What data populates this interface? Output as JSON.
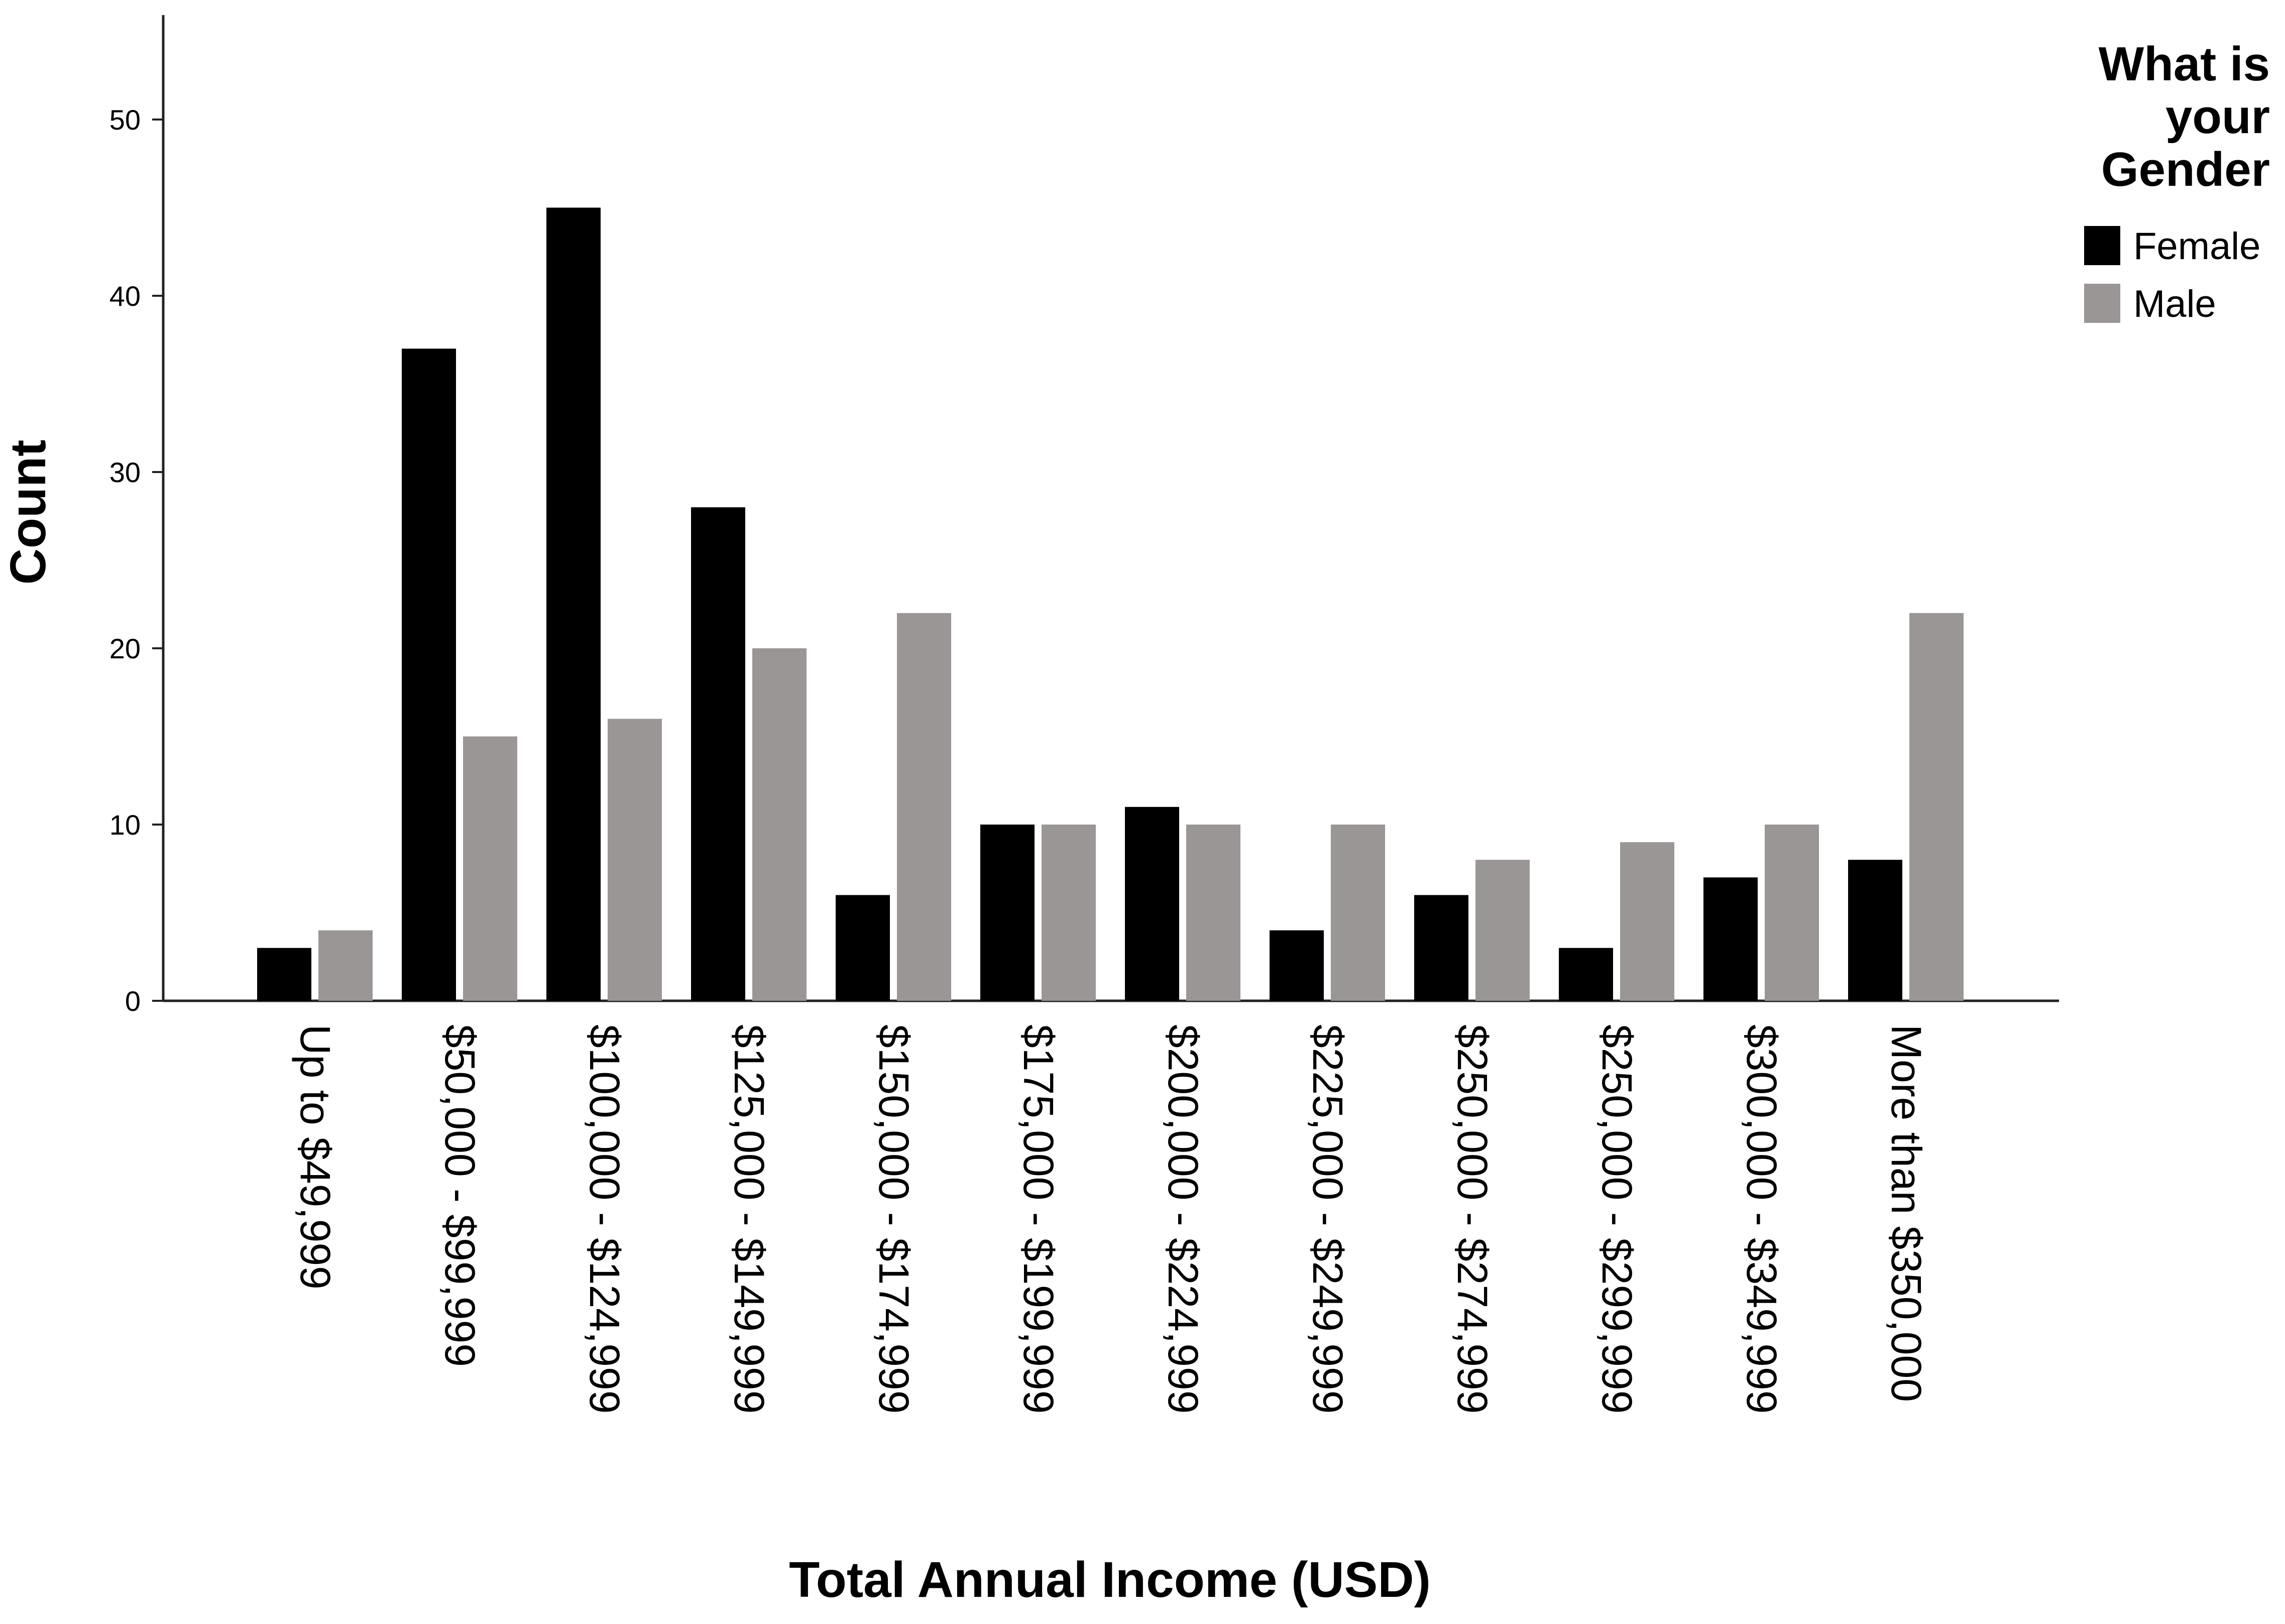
{
  "chart_data": {
    "type": "bar",
    "xlabel": "Total Annual Income (USD)",
    "ylabel": "Count",
    "ylim": [
      0,
      55
    ],
    "yticks": [
      0,
      10,
      20,
      30,
      40,
      50
    ],
    "grid": false,
    "legend": {
      "title_lines": [
        "What is",
        "your",
        "Gender"
      ],
      "position": "top-right"
    },
    "categories": [
      "Up to $49,999",
      "$50,000 - $99,999",
      "$100,000 - $124,999",
      "$125,000 - $149,999",
      "$150,000 - $174,999",
      "$175,000 - $199,999",
      "$200,000 - $224,999",
      "$225,000 - $249,999",
      "$250,000 - $274,999",
      "$250,000 - $299,999",
      "$300,000 - $349,999",
      "More than $350,000"
    ],
    "series": [
      {
        "name": "Female",
        "color": "#000000",
        "values": [
          3,
          37,
          45,
          28,
          6,
          10,
          11,
          4,
          6,
          3,
          7,
          8
        ]
      },
      {
        "name": "Male",
        "color": "#9a9696",
        "values": [
          4,
          15,
          16,
          20,
          22,
          10,
          10,
          10,
          8,
          9,
          10,
          22
        ]
      }
    ]
  }
}
